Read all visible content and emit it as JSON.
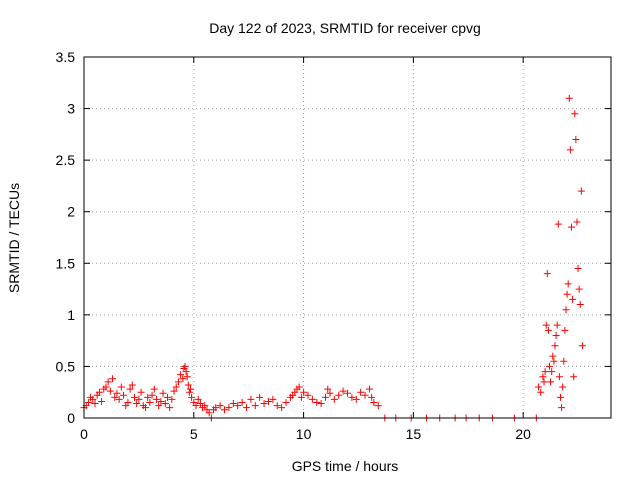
{
  "chart_data": {
    "type": "scatter",
    "title": "Day 122 of 2023, SRMTID for receiver cpvg",
    "xlabel": "GPS time / hours",
    "ylabel": "SRMTID / TECUs",
    "xlim": [
      0,
      24
    ],
    "ylim": [
      0,
      3.5
    ],
    "xticks": [
      0,
      5,
      10,
      15,
      20
    ],
    "xtick_labels": [
      "0",
      "5",
      "10",
      "15",
      "20"
    ],
    "yticks": [
      0,
      0.5,
      1,
      1.5,
      2,
      2.5,
      3,
      3.5
    ],
    "ytick_labels": [
      "0",
      "0.5",
      "1",
      "1.5",
      "2",
      "2.5",
      "3",
      "3.5"
    ],
    "grid": true,
    "marker": "+",
    "color": "#ff0000",
    "series": [
      {
        "name": "SRMTID",
        "x": [
          0.0,
          0.1,
          0.2,
          0.3,
          0.4,
          0.5,
          0.6,
          0.7,
          0.8,
          0.9,
          1.0,
          1.1,
          1.2,
          1.3,
          1.4,
          1.5,
          1.6,
          1.7,
          1.8,
          1.9,
          2.0,
          2.1,
          2.2,
          2.3,
          2.4,
          2.5,
          2.6,
          2.7,
          2.8,
          2.9,
          3.0,
          3.1,
          3.2,
          3.3,
          3.4,
          3.5,
          3.6,
          3.7,
          3.8,
          3.9,
          4.0,
          4.1,
          4.2,
          4.3,
          4.4,
          4.5,
          4.55,
          4.6,
          4.65,
          4.7,
          4.75,
          4.8,
          4.85,
          4.9,
          5.0,
          5.1,
          5.2,
          5.3,
          5.4,
          5.5,
          5.6,
          5.7,
          5.8,
          5.9,
          6.0,
          6.2,
          6.4,
          6.6,
          6.8,
          7.0,
          7.2,
          7.4,
          7.6,
          7.8,
          8.0,
          8.2,
          8.4,
          8.6,
          8.8,
          9.0,
          9.2,
          9.4,
          9.5,
          9.6,
          9.7,
          9.8,
          9.9,
          10.0,
          10.2,
          10.4,
          10.6,
          10.8,
          11.0,
          11.1,
          11.2,
          11.4,
          11.6,
          11.8,
          12.0,
          12.2,
          12.4,
          12.6,
          12.8,
          13.0,
          13.1,
          13.2,
          13.4,
          13.7,
          14.2,
          14.9,
          15.6,
          16.2,
          16.9,
          17.4,
          18.0,
          18.6,
          19.6,
          20.6,
          20.7,
          20.8,
          20.9,
          20.95,
          21.0,
          21.05,
          21.1,
          21.15,
          21.2,
          21.25,
          21.3,
          21.35,
          21.4,
          21.45,
          21.5,
          21.55,
          21.6,
          21.65,
          21.7,
          21.75,
          21.8,
          21.85,
          21.9,
          21.95,
          22.0,
          22.05,
          22.1,
          22.15,
          22.2,
          22.25,
          22.3,
          22.35,
          22.4,
          22.45,
          22.5,
          22.55,
          22.6,
          22.65,
          22.7
        ],
        "y": [
          0.1,
          0.12,
          0.15,
          0.2,
          0.18,
          0.14,
          0.22,
          0.25,
          0.16,
          0.28,
          0.3,
          0.35,
          0.26,
          0.38,
          0.2,
          0.24,
          0.18,
          0.3,
          0.22,
          0.12,
          0.15,
          0.28,
          0.32,
          0.2,
          0.14,
          0.18,
          0.25,
          0.12,
          0.1,
          0.2,
          0.15,
          0.22,
          0.28,
          0.18,
          0.12,
          0.16,
          0.24,
          0.14,
          0.2,
          0.1,
          0.18,
          0.26,
          0.3,
          0.35,
          0.42,
          0.38,
          0.48,
          0.5,
          0.45,
          0.4,
          0.32,
          0.25,
          0.28,
          0.2,
          0.15,
          0.12,
          0.18,
          0.14,
          0.1,
          0.12,
          0.08,
          0.05,
          0.0,
          0.08,
          0.1,
          0.12,
          0.08,
          0.1,
          0.14,
          0.12,
          0.15,
          0.1,
          0.18,
          0.12,
          0.2,
          0.14,
          0.16,
          0.18,
          0.12,
          0.1,
          0.15,
          0.2,
          0.22,
          0.25,
          0.28,
          0.3,
          0.2,
          0.25,
          0.22,
          0.18,
          0.15,
          0.14,
          0.2,
          0.28,
          0.24,
          0.18,
          0.22,
          0.26,
          0.24,
          0.2,
          0.18,
          0.25,
          0.22,
          0.28,
          0.2,
          0.15,
          0.12,
          0.0,
          0.0,
          0.0,
          0.0,
          0.0,
          0.0,
          0.0,
          0.0,
          0.0,
          0.0,
          0.0,
          0.3,
          0.25,
          0.4,
          0.35,
          0.45,
          0.9,
          1.4,
          0.85,
          0.5,
          0.35,
          0.45,
          0.6,
          0.55,
          0.7,
          0.8,
          0.9,
          1.88,
          0.4,
          0.2,
          0.1,
          0.3,
          0.55,
          0.85,
          1.05,
          1.2,
          1.3,
          3.1,
          2.6,
          1.85,
          1.15,
          0.4,
          2.95,
          2.7,
          1.9,
          1.45,
          1.25,
          1.1,
          2.2,
          0.7
        ]
      }
    ]
  }
}
